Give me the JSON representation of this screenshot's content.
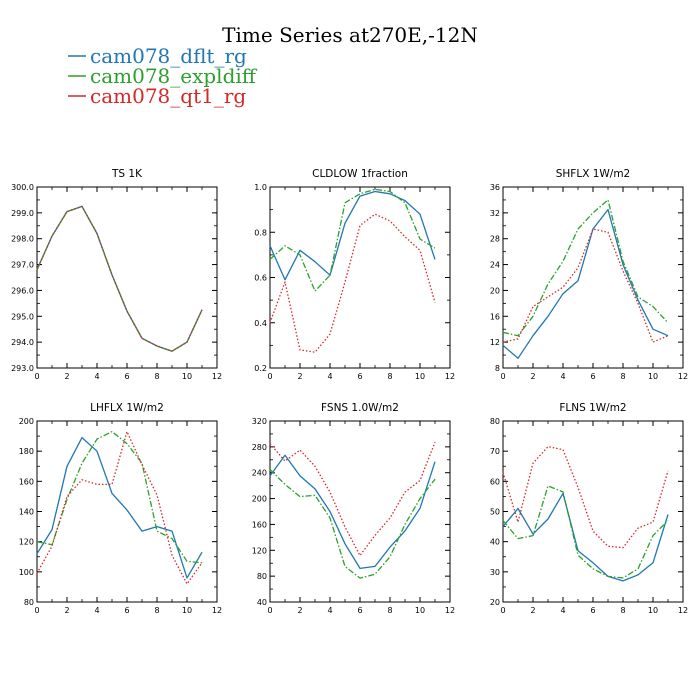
{
  "figure": {
    "title": "Time Series at270E,-12N"
  },
  "legend": [
    {
      "name": "cam078_dflt_rg",
      "color": "#1f77b4",
      "dash": "solid"
    },
    {
      "name": "cam078_expldiff",
      "color": "#2ca02c",
      "dash": "dashdot"
    },
    {
      "name": "cam078_qt1_rg",
      "color": "#d62728",
      "dash": "dotted"
    }
  ],
  "chart_data": [
    {
      "type": "line",
      "title": "TS   1K",
      "x": [
        0,
        1,
        2,
        3,
        4,
        5,
        6,
        7,
        8,
        9,
        10,
        11
      ],
      "xlim": [
        0,
        12
      ],
      "xticks": [
        0,
        2,
        4,
        6,
        8,
        10,
        12
      ],
      "ylim": [
        293,
        300
      ],
      "yticks": [
        293.0,
        294.0,
        295.0,
        296.0,
        297.0,
        298.0,
        299.0,
        300.0
      ],
      "ytick_labels": [
        "293.0",
        "294.0",
        "295.0",
        "296.0",
        "297.0",
        "298.0",
        "299.0",
        "300.0"
      ],
      "series": [
        {
          "name": "cam078_dflt_rg",
          "values": [
            296.8,
            298.1,
            299.05,
            299.25,
            298.2,
            296.6,
            295.2,
            294.15,
            293.85,
            293.65,
            294.0,
            295.25
          ]
        },
        {
          "name": "cam078_expldiff",
          "values": [
            296.8,
            298.1,
            299.05,
            299.25,
            298.2,
            296.6,
            295.2,
            294.15,
            293.85,
            293.65,
            294.0,
            295.25
          ]
        },
        {
          "name": "cam078_qt1_rg",
          "values": [
            296.8,
            298.1,
            299.05,
            299.25,
            298.2,
            296.6,
            295.2,
            294.15,
            293.85,
            293.65,
            294.0,
            295.25
          ]
        }
      ]
    },
    {
      "type": "line",
      "title": "CLDLOW   1fraction",
      "x": [
        0,
        1,
        2,
        3,
        4,
        5,
        6,
        7,
        8,
        9,
        10,
        11
      ],
      "xlim": [
        0,
        12
      ],
      "xticks": [
        0,
        2,
        4,
        6,
        8,
        10,
        12
      ],
      "ylim": [
        0.2,
        1.0
      ],
      "yticks": [
        0.2,
        0.4,
        0.6,
        0.8,
        1.0
      ],
      "ytick_labels": [
        "0.2",
        "0.4",
        "0.6",
        "0.8",
        "1.0"
      ],
      "series": [
        {
          "name": "cam078_dflt_rg",
          "values": [
            0.74,
            0.59,
            0.72,
            0.67,
            0.61,
            0.84,
            0.96,
            0.98,
            0.97,
            0.94,
            0.88,
            0.68
          ]
        },
        {
          "name": "cam078_expldiff",
          "values": [
            0.68,
            0.74,
            0.7,
            0.54,
            0.61,
            0.93,
            0.97,
            0.99,
            0.98,
            0.93,
            0.77,
            0.73
          ]
        },
        {
          "name": "cam078_qt1_rg",
          "values": [
            0.4,
            0.58,
            0.28,
            0.27,
            0.35,
            0.58,
            0.83,
            0.88,
            0.85,
            0.78,
            0.72,
            0.49
          ]
        }
      ]
    },
    {
      "type": "line",
      "title": "SHFLX   1W/m2",
      "x": [
        0,
        1,
        2,
        3,
        4,
        5,
        6,
        7,
        8,
        9,
        10,
        11
      ],
      "xlim": [
        0,
        12
      ],
      "xticks": [
        0,
        2,
        4,
        6,
        8,
        10,
        12
      ],
      "ylim": [
        8,
        36
      ],
      "yticks": [
        8,
        12,
        16,
        20,
        24,
        28,
        32,
        36
      ],
      "ytick_labels": [
        "8",
        "12",
        "16",
        "20",
        "24",
        "28",
        "32",
        "36"
      ],
      "series": [
        {
          "name": "cam078_dflt_rg",
          "values": [
            11.5,
            9.5,
            13.0,
            16.0,
            19.5,
            21.5,
            29.5,
            32.5,
            24.0,
            18.5,
            14.0,
            13.0
          ]
        },
        {
          "name": "cam078_expldiff",
          "values": [
            13.5,
            13.0,
            16.0,
            21.0,
            24.5,
            29.5,
            32.0,
            34.0,
            24.5,
            19.0,
            17.5,
            15.0
          ]
        },
        {
          "name": "cam078_qt1_rg",
          "values": [
            12.0,
            12.5,
            17.5,
            19.0,
            20.5,
            23.5,
            29.5,
            29.0,
            23.0,
            18.0,
            12.0,
            13.0
          ]
        }
      ]
    },
    {
      "type": "line",
      "title": "LHFLX   1W/m2",
      "x": [
        0,
        1,
        2,
        3,
        4,
        5,
        6,
        7,
        8,
        9,
        10,
        11
      ],
      "xlim": [
        0,
        12
      ],
      "xticks": [
        0,
        2,
        4,
        6,
        8,
        10,
        12
      ],
      "ylim": [
        80,
        200
      ],
      "yticks": [
        80,
        100,
        120,
        140,
        160,
        180,
        200
      ],
      "ytick_labels": [
        "80",
        "100",
        "120",
        "140",
        "160",
        "180",
        "200"
      ],
      "series": [
        {
          "name": "cam078_dflt_rg",
          "values": [
            112,
            128,
            170,
            189,
            180,
            152,
            141,
            127,
            130,
            127,
            96,
            113
          ]
        },
        {
          "name": "cam078_expldiff",
          "values": [
            120,
            118,
            148,
            172,
            188,
            193,
            185,
            172,
            127,
            122,
            107,
            106
          ]
        },
        {
          "name": "cam078_qt1_rg",
          "values": [
            99,
            117,
            150,
            161,
            158,
            158,
            193,
            171,
            151,
            111,
            92,
            106
          ]
        }
      ]
    },
    {
      "type": "line",
      "title": "FSNS   1.0W/m2",
      "x": [
        0,
        1,
        2,
        3,
        4,
        5,
        6,
        7,
        8,
        9,
        10,
        11
      ],
      "xlim": [
        0,
        12
      ],
      "xticks": [
        0,
        2,
        4,
        6,
        8,
        10,
        12
      ],
      "ylim": [
        40,
        320
      ],
      "yticks": [
        40,
        80,
        120,
        160,
        200,
        240,
        280,
        320
      ],
      "ytick_labels": [
        "40",
        "80",
        "120",
        "160",
        "200",
        "240",
        "280",
        "320"
      ],
      "series": [
        {
          "name": "cam078_dflt_rg",
          "values": [
            235,
            267,
            235,
            215,
            180,
            130,
            92,
            95,
            125,
            150,
            185,
            257
          ]
        },
        {
          "name": "cam078_expldiff",
          "values": [
            245,
            222,
            203,
            205,
            170,
            95,
            77,
            83,
            110,
            160,
            200,
            230
          ]
        },
        {
          "name": "cam078_qt1_rg",
          "values": [
            285,
            258,
            275,
            250,
            210,
            156,
            112,
            143,
            170,
            210,
            228,
            287
          ]
        }
      ]
    },
    {
      "type": "line",
      "title": "FLNS   1W/m2",
      "x": [
        0,
        1,
        2,
        3,
        4,
        5,
        6,
        7,
        8,
        9,
        10,
        11
      ],
      "xlim": [
        0,
        12
      ],
      "xticks": [
        0,
        2,
        4,
        6,
        8,
        10,
        12
      ],
      "ylim": [
        20,
        80
      ],
      "yticks": [
        20,
        30,
        40,
        50,
        60,
        70,
        80
      ],
      "ytick_labels": [
        "20",
        "30",
        "40",
        "50",
        "60",
        "70",
        "80"
      ],
      "series": [
        {
          "name": "cam078_dflt_rg",
          "values": [
            45.0,
            51.0,
            42.5,
            47.5,
            56.0,
            37.0,
            33.0,
            28.5,
            27.0,
            29.0,
            33.0,
            49.0
          ]
        },
        {
          "name": "cam078_expldiff",
          "values": [
            47.0,
            41.0,
            42.0,
            58.5,
            56.5,
            35.5,
            31.0,
            28.5,
            28.0,
            31.0,
            42.0,
            47.0
          ]
        },
        {
          "name": "cam078_qt1_rg",
          "values": [
            63.0,
            46.5,
            66.0,
            71.5,
            70.5,
            58.0,
            43.5,
            38.5,
            38.0,
            44.5,
            46.5,
            63.5
          ]
        }
      ]
    }
  ]
}
